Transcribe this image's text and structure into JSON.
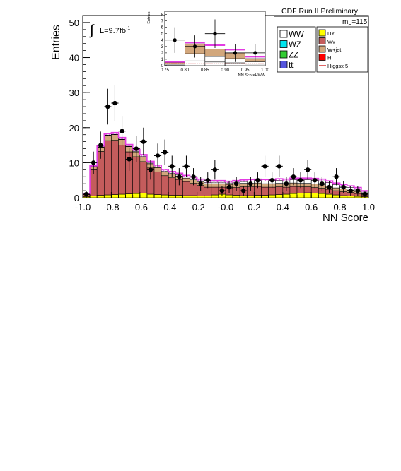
{
  "chart_data": {
    "type": "bar",
    "title": "CDF Run II Preliminary",
    "xlabel": "NN Score",
    "ylabel": "Entries",
    "xlim": [
      -1.0,
      1.0
    ],
    "ylim": [
      0,
      52
    ],
    "xticks": [
      "-1.0",
      "-0.8",
      "-0.6",
      "-0.4",
      "-0.2",
      "-0.0",
      "0.2",
      "0.4",
      "0.6",
      "0.8",
      "1.0"
    ],
    "yticks": [
      "0",
      "10",
      "20",
      "30",
      "40",
      "50"
    ],
    "luminosity_label": "L=9.7fb",
    "luminosity_sup": "-1",
    "integral_symbol": "∫",
    "mass_label": "m",
    "mass_sub": "H",
    "mass_value": "=115",
    "legend_placement": "top-right",
    "legend": [
      {
        "name": "WW",
        "color": "#ffffff",
        "key": "WW"
      },
      {
        "name": "WZ",
        "color": "#00e5ee",
        "key": "WZ"
      },
      {
        "name": "ZZ",
        "color": "#33cc33",
        "key": "ZZ"
      },
      {
        "name": "tt̄",
        "color": "#5555dd",
        "key": "tt"
      },
      {
        "name": "DY",
        "color": "#ffff00",
        "key": "DY"
      },
      {
        "name": "Wγ",
        "color": "#c45c5c",
        "key": "Wg"
      },
      {
        "name": "W+jet",
        "color": "#d2a77c",
        "key": "Wjet"
      },
      {
        "name": "H",
        "color": "#ff0000",
        "key": "H"
      },
      {
        "name": "Higgsx 5",
        "color": "#cc0000",
        "key": "Hx5"
      }
    ],
    "bin_edges_note": "40 bins of width 0.05",
    "x": [
      -0.975,
      -0.925,
      -0.875,
      -0.825,
      -0.775,
      -0.725,
      -0.675,
      -0.625,
      -0.575,
      -0.525,
      -0.475,
      -0.425,
      -0.375,
      -0.325,
      -0.275,
      -0.225,
      -0.175,
      -0.125,
      -0.075,
      -0.025,
      0.025,
      0.075,
      0.125,
      0.175,
      0.225,
      0.275,
      0.325,
      0.375,
      0.425,
      0.475,
      0.525,
      0.575,
      0.625,
      0.675,
      0.725,
      0.775,
      0.825,
      0.875,
      0.925,
      0.975
    ],
    "series": [
      {
        "name": "DY",
        "values": [
          0.3,
          0.5,
          0.7,
          0.8,
          0.9,
          1.0,
          1.1,
          1.2,
          1.3,
          1.0,
          0.9,
          0.8,
          0.7,
          0.7,
          0.6,
          0.6,
          0.5,
          0.5,
          0.8,
          1.0,
          0.8,
          0.7,
          0.6,
          0.6,
          0.7,
          0.7,
          0.8,
          0.9,
          1.0,
          1.2,
          1.3,
          1.4,
          1.3,
          1.2,
          1.0,
          0.8,
          0.6,
          0.5,
          0.4,
          0.3
        ]
      },
      {
        "name": "Wγ",
        "values": [
          0.6,
          7.5,
          12.5,
          15.5,
          15.5,
          14.0,
          12.0,
          10.5,
          9.0,
          7.5,
          6.5,
          5.5,
          5.0,
          4.5,
          4.0,
          3.5,
          3.0,
          2.5,
          2.2,
          2.0,
          2.0,
          2.2,
          2.5,
          2.5,
          2.5,
          2.3,
          2.2,
          2.2,
          2.0,
          2.0,
          1.8,
          1.7,
          1.6,
          1.5,
          1.4,
          1.2,
          1.1,
          1.0,
          0.8,
          0.5
        ]
      },
      {
        "name": "W+jet",
        "values": [
          0.2,
          0.8,
          1.2,
          1.5,
          1.6,
          1.6,
          1.5,
          1.4,
          1.3,
          1.2,
          1.2,
          1.1,
          1.1,
          1.0,
          1.0,
          1.0,
          1.0,
          1.0,
          1.0,
          1.0,
          1.0,
          1.0,
          1.0,
          1.0,
          1.0,
          1.0,
          1.0,
          1.0,
          1.0,
          1.0,
          1.0,
          1.0,
          1.0,
          1.0,
          0.9,
          0.8,
          0.8,
          0.7,
          0.6,
          0.4
        ]
      },
      {
        "name": "WW",
        "values": [
          0.0,
          0.1,
          0.1,
          0.1,
          0.1,
          0.1,
          0.1,
          0.2,
          0.2,
          0.2,
          0.2,
          0.2,
          0.2,
          0.3,
          0.3,
          0.3,
          0.3,
          0.3,
          0.4,
          0.4,
          0.4,
          0.5,
          0.5,
          0.6,
          0.6,
          0.7,
          0.7,
          0.8,
          0.8,
          0.9,
          1.0,
          1.0,
          1.1,
          1.1,
          1.0,
          0.9,
          0.8,
          0.7,
          0.6,
          0.4
        ]
      },
      {
        "name": "Higgsx 5",
        "values": [
          0.0,
          0.2,
          0.3,
          0.4,
          0.5,
          0.5,
          0.5,
          0.5,
          0.5,
          0.5,
          0.5,
          0.5,
          0.5,
          0.5,
          0.5,
          0.5,
          0.5,
          0.5,
          0.5,
          0.5,
          0.5,
          0.5,
          0.5,
          0.5,
          0.5,
          0.5,
          0.5,
          0.5,
          0.5,
          0.5,
          0.5,
          0.5,
          0.5,
          0.5,
          0.5,
          0.5,
          0.5,
          0.5,
          0.5,
          0.4
        ]
      }
    ],
    "data_points": {
      "name": "Data",
      "y": [
        1,
        10,
        15,
        26,
        27,
        19,
        11,
        14,
        16,
        8,
        12,
        13,
        9,
        6,
        9,
        6,
        4,
        5,
        8,
        2,
        3,
        4,
        2,
        4,
        5,
        9,
        5,
        9,
        4,
        6,
        5,
        8,
        5,
        4,
        3,
        6,
        3,
        2,
        2,
        1
      ]
    },
    "inset": {
      "xlabel": "NN ScoreHWW",
      "ylabel": "Entries",
      "xlim": [
        0.75,
        1.0
      ],
      "ylim": [
        0,
        8.5
      ],
      "xticks": [
        "0.75",
        "0.80",
        "0.85",
        "0.90",
        "0.95",
        "1.00"
      ],
      "yticks": [
        "0",
        "1",
        "2",
        "3",
        "4",
        "5",
        "6",
        "7",
        "8"
      ],
      "x": [
        0.775,
        0.825,
        0.875,
        0.925,
        0.975
      ],
      "stack_total": [
        0.5,
        3.4,
        2.6,
        2.0,
        1.1
      ],
      "signal_top": [
        0.6,
        3.6,
        3.2,
        2.5,
        1.4
      ],
      "data_y": [
        4.0,
        3.0,
        5.0,
        2.0,
        2.0
      ]
    }
  }
}
